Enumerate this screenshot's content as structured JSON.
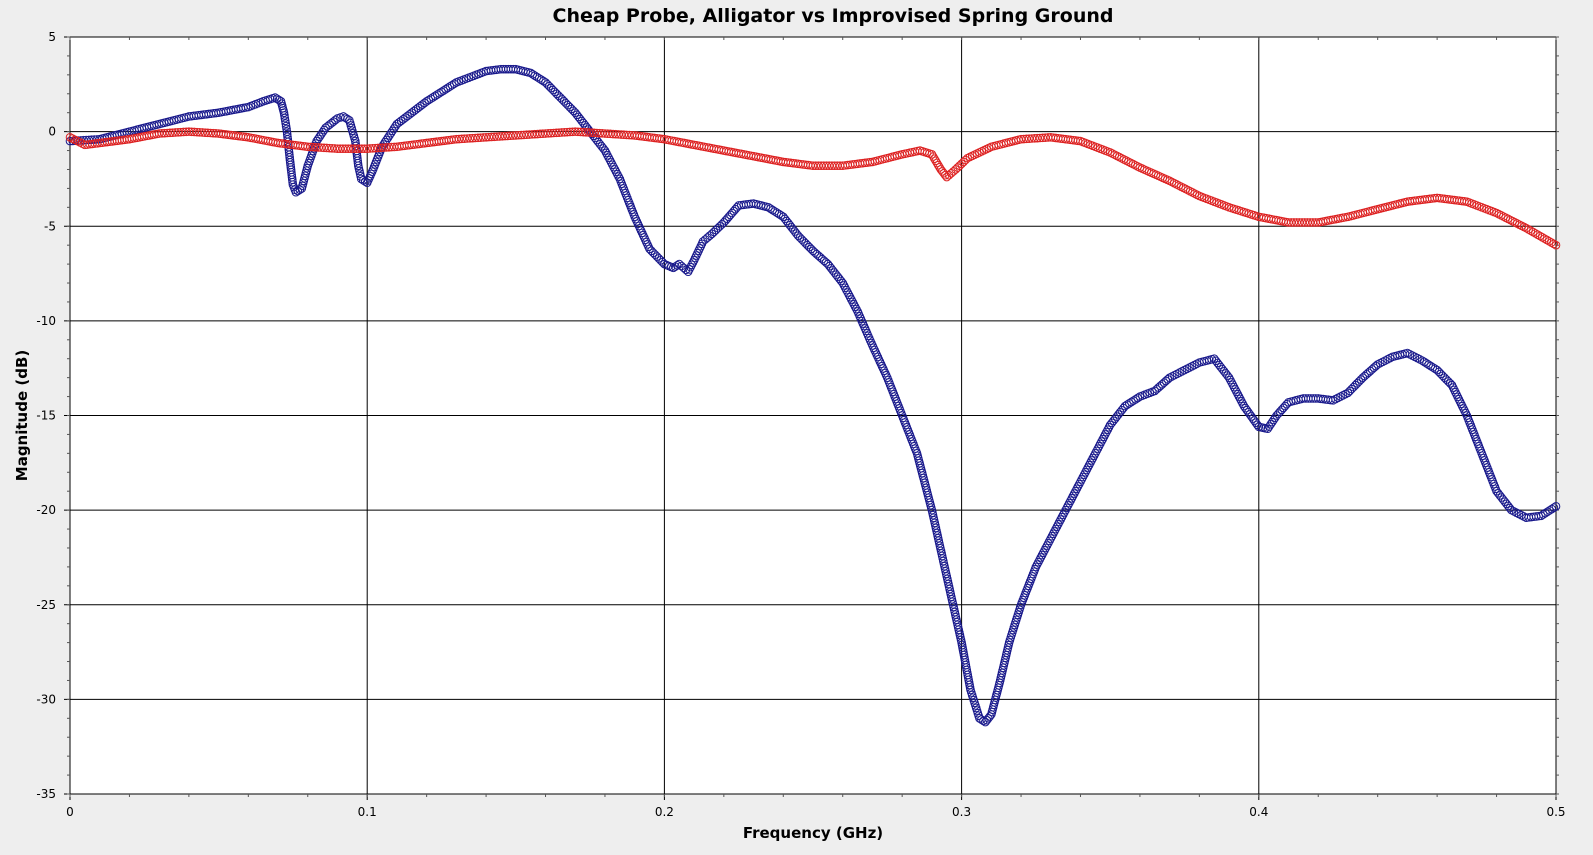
{
  "chart_data": {
    "type": "scatter",
    "title": "Cheap Probe, Alligator vs Improvised Spring Ground",
    "xlabel": "Frequency (GHz)",
    "ylabel": "Magnitude (dB)",
    "xlim": [
      0,
      0.5
    ],
    "ylim": [
      -35,
      5
    ],
    "xticks": [
      0,
      0.1,
      0.2,
      0.3,
      0.4,
      0.5
    ],
    "xtick_labels": [
      "0",
      "0.1",
      "0.2",
      "0.3",
      "0.4",
      "0.5"
    ],
    "yticks": [
      5,
      0,
      -5,
      -10,
      -15,
      -20,
      -25,
      -30,
      -35
    ],
    "ytick_labels": [
      "5",
      "0",
      "-5",
      "-10",
      "-15",
      "-20",
      "-25",
      "-30",
      "-35"
    ],
    "grid": true,
    "legend": "none",
    "marker": "open-circle",
    "series": [
      {
        "color": "#1a1a8c",
        "points": [
          [
            0.0,
            -0.5
          ],
          [
            0.01,
            -0.4
          ],
          [
            0.02,
            0.0
          ],
          [
            0.03,
            0.4
          ],
          [
            0.04,
            0.8
          ],
          [
            0.05,
            1.0
          ],
          [
            0.06,
            1.3
          ],
          [
            0.065,
            1.6
          ],
          [
            0.069,
            1.8
          ],
          [
            0.071,
            1.6
          ],
          [
            0.072,
            1.0
          ],
          [
            0.073,
            0.0
          ],
          [
            0.074,
            -1.5
          ],
          [
            0.075,
            -2.8
          ],
          [
            0.076,
            -3.2
          ],
          [
            0.078,
            -3.0
          ],
          [
            0.08,
            -1.8
          ],
          [
            0.083,
            -0.5
          ],
          [
            0.086,
            0.2
          ],
          [
            0.09,
            0.7
          ],
          [
            0.092,
            0.8
          ],
          [
            0.094,
            0.6
          ],
          [
            0.096,
            -0.5
          ],
          [
            0.097,
            -1.8
          ],
          [
            0.098,
            -2.5
          ],
          [
            0.1,
            -2.7
          ],
          [
            0.102,
            -2.0
          ],
          [
            0.105,
            -0.8
          ],
          [
            0.11,
            0.4
          ],
          [
            0.115,
            1.0
          ],
          [
            0.12,
            1.6
          ],
          [
            0.125,
            2.1
          ],
          [
            0.13,
            2.6
          ],
          [
            0.135,
            2.9
          ],
          [
            0.14,
            3.2
          ],
          [
            0.145,
            3.3
          ],
          [
            0.15,
            3.3
          ],
          [
            0.155,
            3.1
          ],
          [
            0.16,
            2.6
          ],
          [
            0.165,
            1.8
          ],
          [
            0.17,
            1.0
          ],
          [
            0.175,
            0.0
          ],
          [
            0.18,
            -1.0
          ],
          [
            0.185,
            -2.5
          ],
          [
            0.19,
            -4.5
          ],
          [
            0.195,
            -6.2
          ],
          [
            0.2,
            -7.0
          ],
          [
            0.203,
            -7.2
          ],
          [
            0.205,
            -7.0
          ],
          [
            0.208,
            -7.4
          ],
          [
            0.21,
            -6.8
          ],
          [
            0.213,
            -5.8
          ],
          [
            0.216,
            -5.4
          ],
          [
            0.22,
            -4.8
          ],
          [
            0.225,
            -3.9
          ],
          [
            0.23,
            -3.8
          ],
          [
            0.235,
            -4.0
          ],
          [
            0.24,
            -4.5
          ],
          [
            0.245,
            -5.5
          ],
          [
            0.25,
            -6.3
          ],
          [
            0.255,
            -7.0
          ],
          [
            0.26,
            -8.0
          ],
          [
            0.265,
            -9.5
          ],
          [
            0.27,
            -11.3
          ],
          [
            0.275,
            -13.0
          ],
          [
            0.28,
            -15.0
          ],
          [
            0.285,
            -17.0
          ],
          [
            0.29,
            -20.0
          ],
          [
            0.295,
            -23.5
          ],
          [
            0.3,
            -27.0
          ],
          [
            0.303,
            -29.5
          ],
          [
            0.306,
            -31.0
          ],
          [
            0.308,
            -31.2
          ],
          [
            0.31,
            -30.8
          ],
          [
            0.313,
            -29.0
          ],
          [
            0.316,
            -27.0
          ],
          [
            0.32,
            -25.0
          ],
          [
            0.325,
            -23.0
          ],
          [
            0.33,
            -21.5
          ],
          [
            0.335,
            -20.0
          ],
          [
            0.34,
            -18.5
          ],
          [
            0.345,
            -17.0
          ],
          [
            0.35,
            -15.5
          ],
          [
            0.355,
            -14.5
          ],
          [
            0.36,
            -14.0
          ],
          [
            0.365,
            -13.7
          ],
          [
            0.37,
            -13.0
          ],
          [
            0.375,
            -12.6
          ],
          [
            0.38,
            -12.2
          ],
          [
            0.385,
            -12.0
          ],
          [
            0.39,
            -13.0
          ],
          [
            0.395,
            -14.5
          ],
          [
            0.4,
            -15.6
          ],
          [
            0.403,
            -15.7
          ],
          [
            0.406,
            -15.0
          ],
          [
            0.41,
            -14.3
          ],
          [
            0.415,
            -14.1
          ],
          [
            0.42,
            -14.1
          ],
          [
            0.425,
            -14.2
          ],
          [
            0.43,
            -13.8
          ],
          [
            0.435,
            -13.0
          ],
          [
            0.44,
            -12.3
          ],
          [
            0.445,
            -11.9
          ],
          [
            0.45,
            -11.7
          ],
          [
            0.455,
            -12.1
          ],
          [
            0.46,
            -12.6
          ],
          [
            0.465,
            -13.4
          ],
          [
            0.47,
            -15.0
          ],
          [
            0.475,
            -17.0
          ],
          [
            0.48,
            -19.0
          ],
          [
            0.485,
            -20.0
          ],
          [
            0.49,
            -20.4
          ],
          [
            0.495,
            -20.3
          ],
          [
            0.5,
            -19.8
          ]
        ]
      },
      {
        "color": "#dd2222",
        "points": [
          [
            0.0,
            -0.3
          ],
          [
            0.005,
            -0.7
          ],
          [
            0.01,
            -0.6
          ],
          [
            0.02,
            -0.4
          ],
          [
            0.03,
            -0.1
          ],
          [
            0.04,
            0.0
          ],
          [
            0.05,
            -0.1
          ],
          [
            0.06,
            -0.3
          ],
          [
            0.07,
            -0.6
          ],
          [
            0.08,
            -0.8
          ],
          [
            0.09,
            -0.9
          ],
          [
            0.1,
            -0.9
          ],
          [
            0.11,
            -0.8
          ],
          [
            0.12,
            -0.6
          ],
          [
            0.13,
            -0.4
          ],
          [
            0.14,
            -0.3
          ],
          [
            0.15,
            -0.2
          ],
          [
            0.16,
            -0.1
          ],
          [
            0.17,
            0.0
          ],
          [
            0.18,
            -0.1
          ],
          [
            0.19,
            -0.2
          ],
          [
            0.2,
            -0.4
          ],
          [
            0.21,
            -0.7
          ],
          [
            0.22,
            -1.0
          ],
          [
            0.23,
            -1.3
          ],
          [
            0.24,
            -1.6
          ],
          [
            0.25,
            -1.8
          ],
          [
            0.26,
            -1.8
          ],
          [
            0.27,
            -1.6
          ],
          [
            0.28,
            -1.2
          ],
          [
            0.286,
            -1.0
          ],
          [
            0.29,
            -1.2
          ],
          [
            0.293,
            -2.0
          ],
          [
            0.295,
            -2.4
          ],
          [
            0.298,
            -2.0
          ],
          [
            0.302,
            -1.4
          ],
          [
            0.31,
            -0.8
          ],
          [
            0.32,
            -0.4
          ],
          [
            0.33,
            -0.3
          ],
          [
            0.34,
            -0.5
          ],
          [
            0.35,
            -1.1
          ],
          [
            0.36,
            -1.9
          ],
          [
            0.37,
            -2.6
          ],
          [
            0.38,
            -3.4
          ],
          [
            0.39,
            -4.0
          ],
          [
            0.4,
            -4.5
          ],
          [
            0.41,
            -4.8
          ],
          [
            0.42,
            -4.8
          ],
          [
            0.43,
            -4.5
          ],
          [
            0.44,
            -4.1
          ],
          [
            0.45,
            -3.7
          ],
          [
            0.46,
            -3.5
          ],
          [
            0.47,
            -3.7
          ],
          [
            0.48,
            -4.3
          ],
          [
            0.49,
            -5.1
          ],
          [
            0.5,
            -6.0
          ]
        ]
      }
    ]
  }
}
